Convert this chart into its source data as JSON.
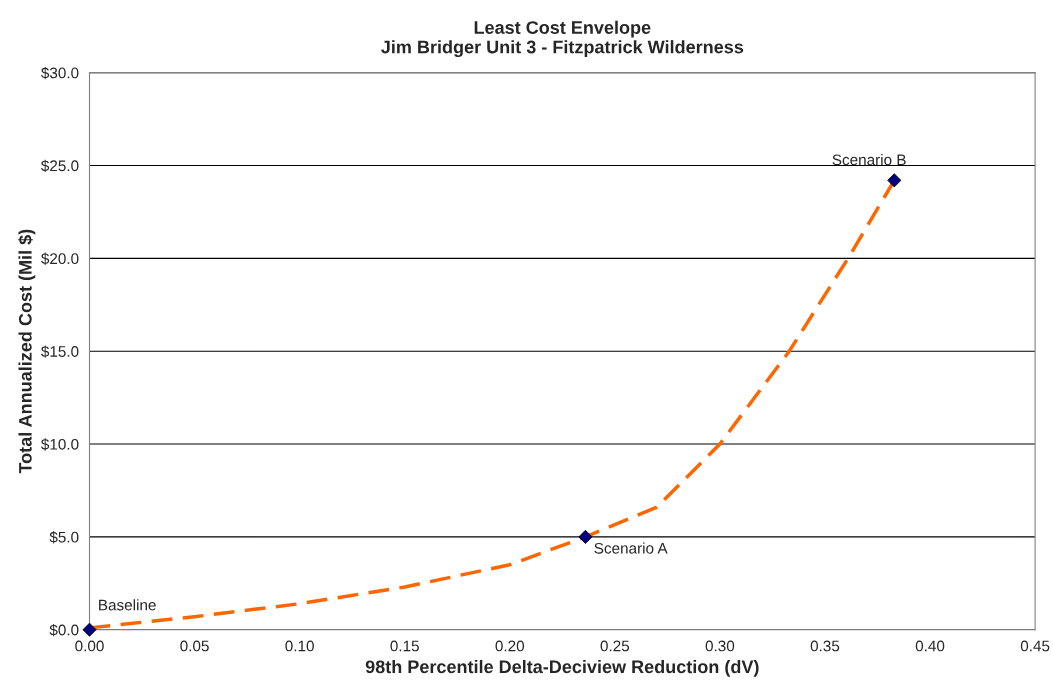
{
  "chart_data": {
    "type": "scatter",
    "title": "Least Cost Envelope\nJim Bridger Unit 3 - Fitzpatrick Wilderness",
    "xlabel": "98th Percentile Delta-Deciview Reduction (dV)",
    "ylabel": "Total Annualized Cost (Mil $)",
    "series": [
      {
        "type": "line",
        "color": "#ff6600",
        "line_style": "dashed",
        "x": [
          0,
          0.05,
          0.1,
          0.15,
          0.2,
          0.236,
          0.27,
          0.3,
          0.333,
          0.361,
          0.383
        ],
        "values": [
          0.1,
          0.7,
          1.4,
          2.3,
          3.5,
          5.0,
          6.6,
          10.0,
          15.0,
          20.0,
          24.2
        ]
      },
      {
        "color": "#000080",
        "marker": "diamond",
        "x": [
          0,
          0.236,
          0.383
        ],
        "values": [
          0,
          5.0,
          24.2
        ]
      }
    ],
    "annotations": [
      {
        "text": "Baseline",
        "x": 0,
        "y": 0
      },
      {
        "text": "Scenario A",
        "x": 0.236,
        "y": 5.0
      },
      {
        "text": "Scenario B",
        "x": 0.383,
        "y": 24.2
      }
    ],
    "xlim": [
      0,
      0.45
    ],
    "xticks": [
      {
        "value": 0,
        "label": "0.00"
      },
      {
        "value": 0.05,
        "label": "0.05"
      },
      {
        "value": 0.1,
        "label": "0.10"
      },
      {
        "value": 0.15,
        "label": "0.15"
      },
      {
        "value": 0.2,
        "label": "0.20"
      },
      {
        "value": 0.25,
        "label": "0.25"
      },
      {
        "value": 0.3,
        "label": "0.30"
      },
      {
        "value": 0.35,
        "label": "0.35"
      },
      {
        "value": 0.4,
        "label": "0.40"
      },
      {
        "value": 0.45,
        "label": "0.45"
      }
    ],
    "ylim": [
      0,
      30
    ],
    "yticks": [
      {
        "value": 0,
        "label": "$0.0"
      },
      {
        "value": 5,
        "label": "$5.0"
      },
      {
        "value": 10,
        "label": "$10.0"
      },
      {
        "value": 15,
        "label": "$15.0"
      },
      {
        "value": 20,
        "label": "$20.0"
      },
      {
        "value": 25,
        "label": "$25.0"
      },
      {
        "value": 30,
        "label": "$30.0"
      }
    ],
    "grid": "y"
  }
}
